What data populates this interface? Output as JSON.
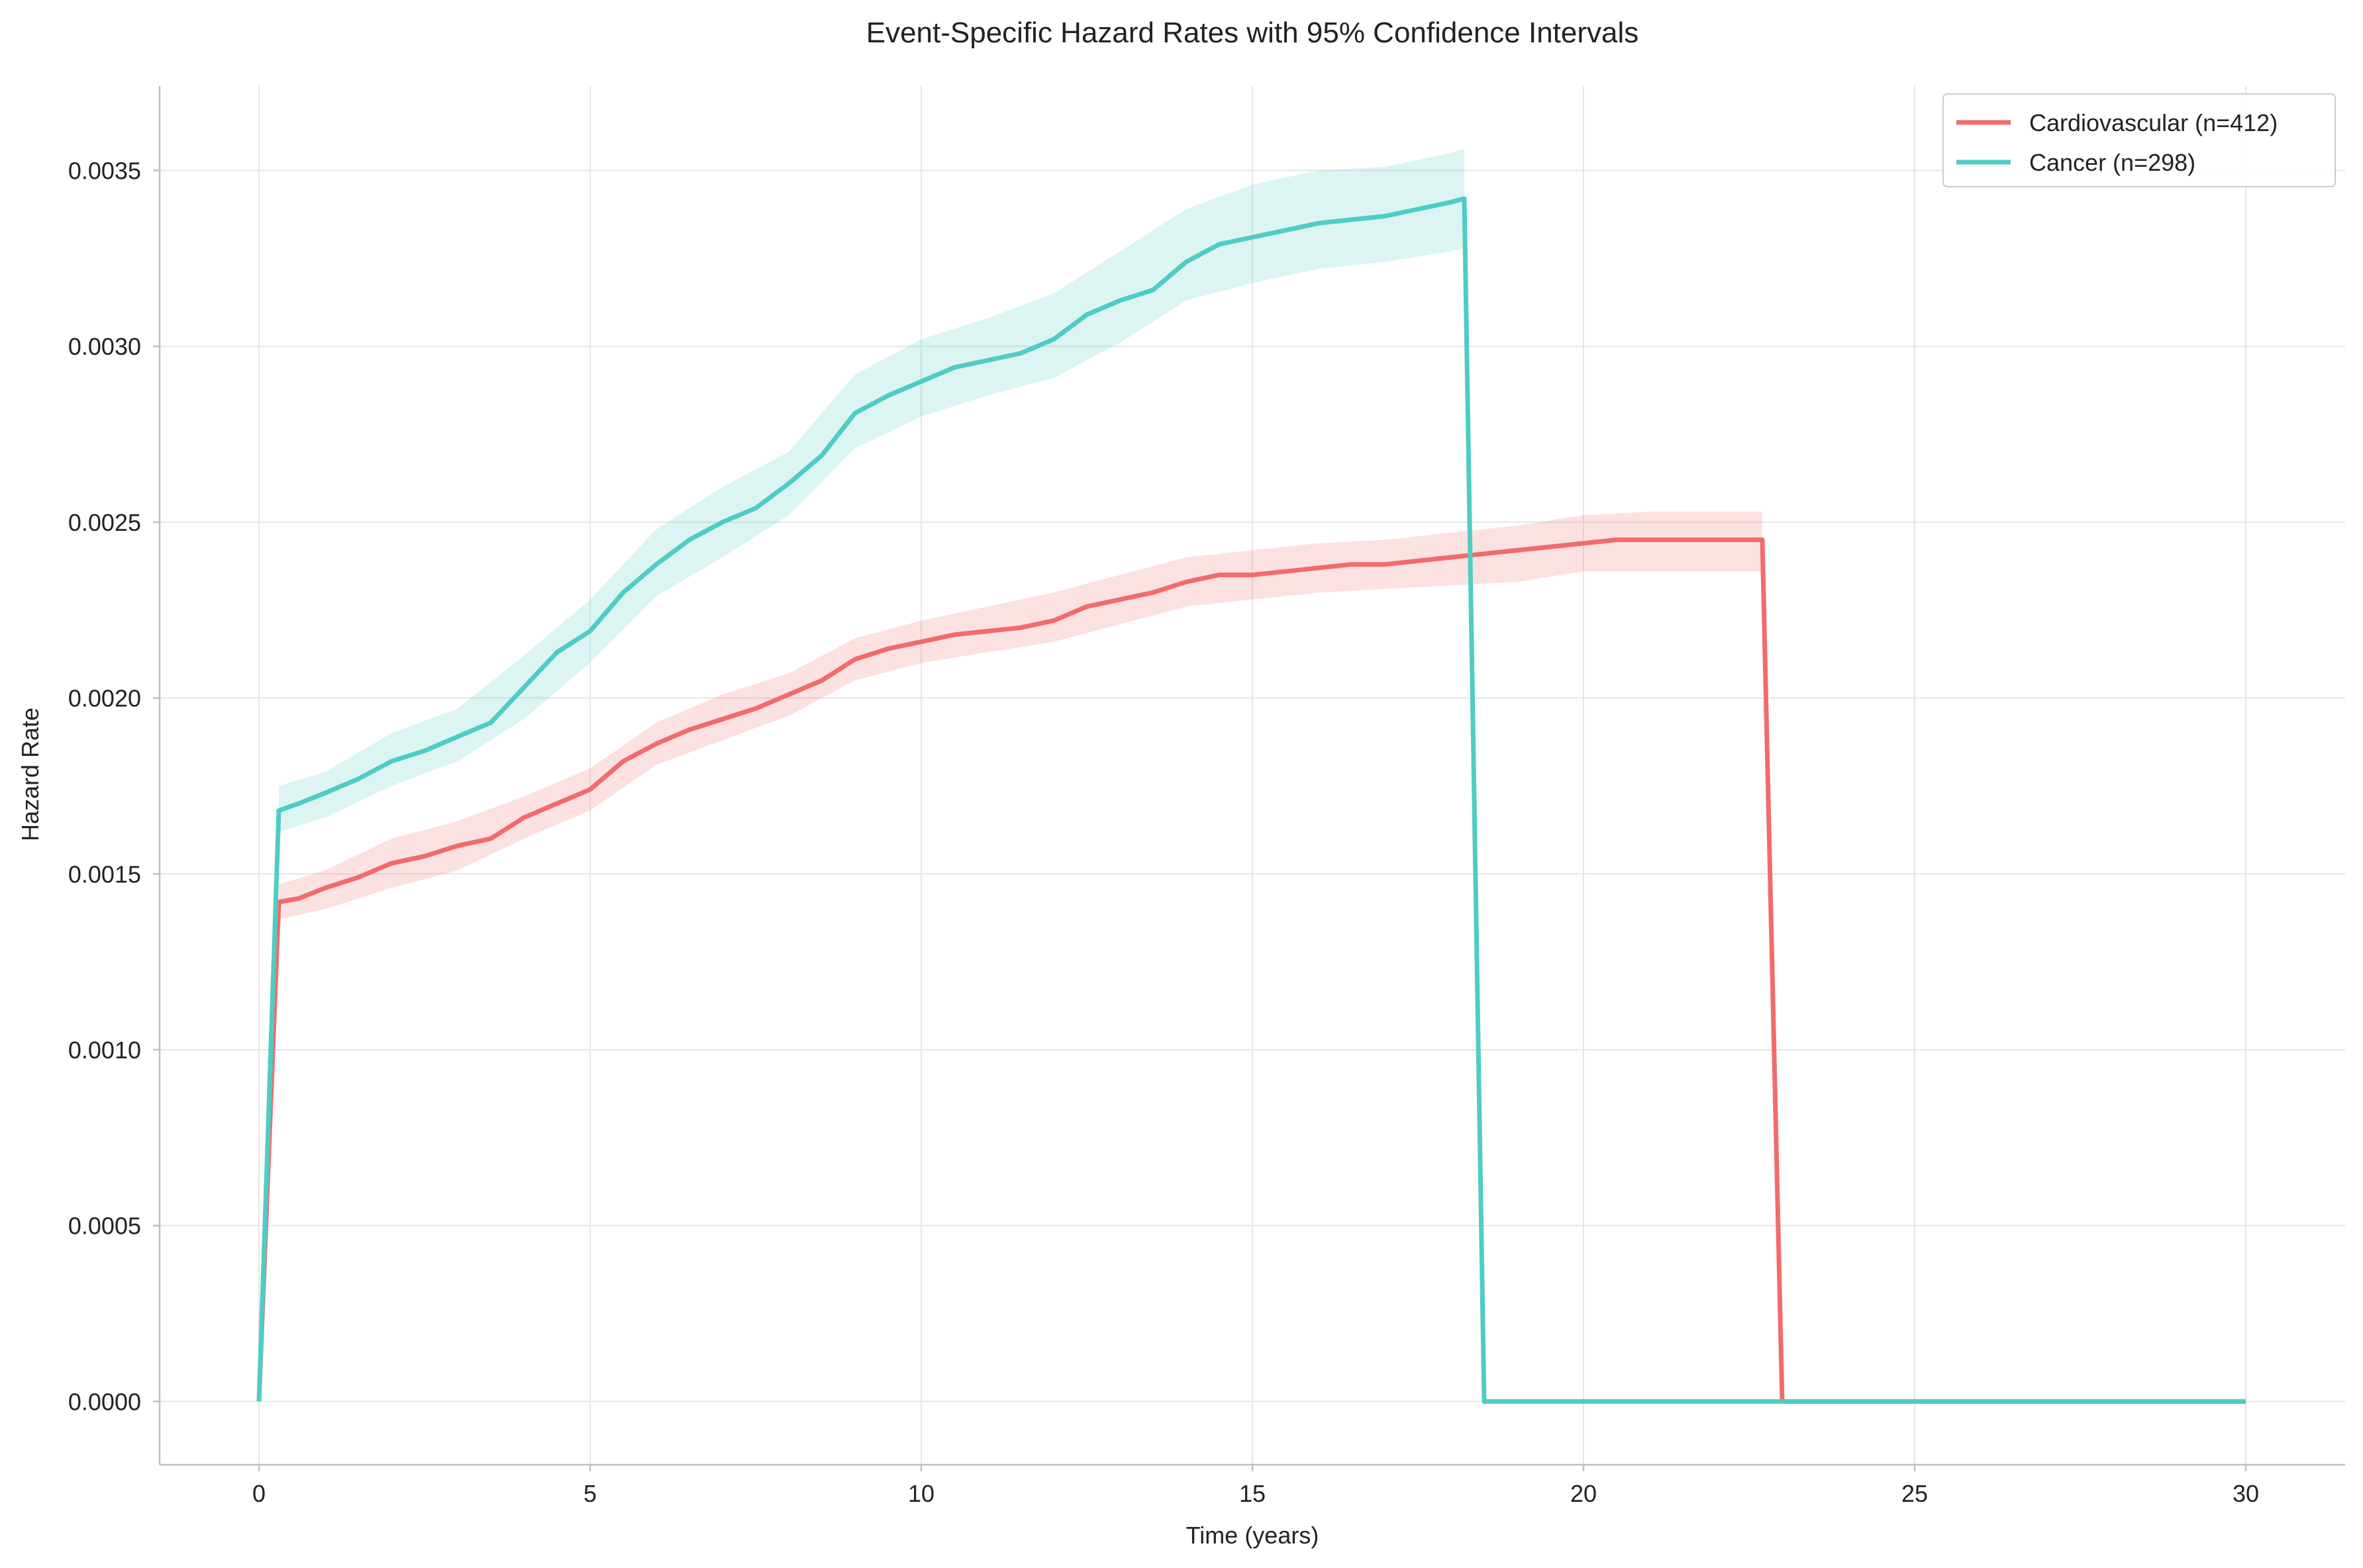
{
  "chart_data": {
    "type": "line",
    "title": "Event-Specific Hazard Rates with 95% Confidence Intervals",
    "xlabel": "Time (years)",
    "ylabel": "Hazard Rate",
    "xlim": [
      -1.5,
      31.5
    ],
    "ylim": [
      -0.00018,
      0.00374
    ],
    "xticks": [
      0,
      5,
      10,
      15,
      20,
      25,
      30
    ],
    "xtick_labels": [
      "0",
      "5",
      "10",
      "15",
      "20",
      "25",
      "30"
    ],
    "yticks": [
      0,
      0.0005,
      0.001,
      0.0015,
      0.002,
      0.0025,
      0.003,
      0.0035
    ],
    "ytick_labels": [
      "0.0000",
      "0.0005",
      "0.0010",
      "0.0015",
      "0.0020",
      "0.0025",
      "0.0030",
      "0.0035"
    ],
    "grid": true,
    "legend_position": "top-right",
    "series": [
      {
        "name": "Cardiovascular (n=412)",
        "color": "#F26B6B",
        "x": [
          0,
          0.3,
          0.6,
          1.0,
          1.5,
          2.0,
          2.5,
          3.0,
          3.5,
          4.0,
          4.5,
          5.0,
          5.5,
          6.0,
          6.5,
          7.0,
          7.5,
          8.0,
          8.5,
          9.0,
          9.5,
          10.0,
          10.5,
          11.0,
          11.5,
          12.0,
          12.5,
          13.0,
          13.5,
          14.0,
          14.5,
          15.0,
          15.5,
          16.0,
          16.5,
          17.0,
          17.5,
          18.0,
          18.5,
          19.0,
          19.5,
          20.0,
          20.5,
          21.0,
          21.5,
          22.0,
          22.7,
          23.0,
          23.5,
          24.0,
          25.0,
          26.0,
          27.0,
          28.0,
          29.0,
          30.0
        ],
        "y": [
          0,
          0.00142,
          0.00143,
          0.00146,
          0.00149,
          0.00153,
          0.00155,
          0.00158,
          0.0016,
          0.00166,
          0.0017,
          0.00174,
          0.00182,
          0.00187,
          0.00191,
          0.00194,
          0.00197,
          0.00201,
          0.00205,
          0.00211,
          0.00214,
          0.00216,
          0.00218,
          0.00219,
          0.0022,
          0.00222,
          0.00226,
          0.00228,
          0.0023,
          0.00233,
          0.00235,
          0.00235,
          0.00236,
          0.00237,
          0.00238,
          0.00238,
          0.00239,
          0.0024,
          0.00241,
          0.00242,
          0.00243,
          0.00244,
          0.00245,
          0.00245,
          0.00245,
          0.00245,
          0.00245,
          0,
          0,
          0,
          0,
          0,
          0,
          0,
          0,
          0
        ],
        "ci_x": [
          0.3,
          1.0,
          2.0,
          3.0,
          4.0,
          5.0,
          6.0,
          7.0,
          8.0,
          9.0,
          10.0,
          11.0,
          12.0,
          13.0,
          14.0,
          15.0,
          16.0,
          17.0,
          18.0,
          19.0,
          20.0,
          21.0,
          22.0,
          22.7
        ],
        "ci_lower": [
          0.00137,
          0.0014,
          0.00146,
          0.00151,
          0.0016,
          0.00168,
          0.00181,
          0.00188,
          0.00195,
          0.00205,
          0.0021,
          0.00213,
          0.00216,
          0.00221,
          0.00226,
          0.00228,
          0.0023,
          0.00231,
          0.00232,
          0.00233,
          0.00236,
          0.00236,
          0.00236,
          0.00236
        ],
        "ci_upper": [
          0.00147,
          0.00151,
          0.0016,
          0.00165,
          0.00172,
          0.0018,
          0.00193,
          0.00201,
          0.00207,
          0.00217,
          0.00222,
          0.00226,
          0.0023,
          0.00235,
          0.0024,
          0.00242,
          0.00244,
          0.00245,
          0.00247,
          0.00249,
          0.00252,
          0.00253,
          0.00253,
          0.00253
        ]
      },
      {
        "name": "Cancer (n=298)",
        "color": "#4ECDC4",
        "x": [
          0,
          0.3,
          0.6,
          1.0,
          1.5,
          2.0,
          2.5,
          3.0,
          3.5,
          4.0,
          4.5,
          5.0,
          5.5,
          6.0,
          6.5,
          7.0,
          7.5,
          8.0,
          8.5,
          9.0,
          9.5,
          10.0,
          10.5,
          11.0,
          11.5,
          12.0,
          12.5,
          13.0,
          13.5,
          14.0,
          14.5,
          15.0,
          15.5,
          16.0,
          16.5,
          17.0,
          17.5,
          18.0,
          18.2,
          18.5,
          19.0,
          20.0,
          21.0,
          22.0,
          23.0,
          24.0,
          25.0,
          26.0,
          27.0,
          28.0,
          29.0,
          30.0
        ],
        "y": [
          0,
          0.00168,
          0.0017,
          0.00173,
          0.00177,
          0.00182,
          0.00185,
          0.00189,
          0.00193,
          0.00203,
          0.00213,
          0.00219,
          0.0023,
          0.00238,
          0.00245,
          0.0025,
          0.00254,
          0.00261,
          0.00269,
          0.00281,
          0.00286,
          0.0029,
          0.00294,
          0.00296,
          0.00298,
          0.00302,
          0.00309,
          0.00313,
          0.00316,
          0.00324,
          0.00329,
          0.00331,
          0.00333,
          0.00335,
          0.00336,
          0.00337,
          0.00339,
          0.00341,
          0.00342,
          0,
          0,
          0,
          0,
          0,
          0,
          0,
          0,
          0,
          0,
          0,
          0,
          0
        ],
        "ci_x": [
          0.3,
          1.0,
          2.0,
          3.0,
          4.0,
          5.0,
          6.0,
          7.0,
          8.0,
          9.0,
          10.0,
          11.0,
          12.0,
          13.0,
          14.0,
          15.0,
          16.0,
          17.0,
          18.0,
          18.2
        ],
        "ci_lower": [
          0.00162,
          0.00166,
          0.00175,
          0.00182,
          0.00194,
          0.0021,
          0.00229,
          0.0024,
          0.00252,
          0.00271,
          0.0028,
          0.00286,
          0.00291,
          0.00301,
          0.00313,
          0.00318,
          0.00322,
          0.00324,
          0.00327,
          0.00328
        ],
        "ci_upper": [
          0.00175,
          0.00179,
          0.0019,
          0.00197,
          0.00212,
          0.00228,
          0.00248,
          0.0026,
          0.0027,
          0.00292,
          0.00302,
          0.00308,
          0.00315,
          0.00327,
          0.00339,
          0.00346,
          0.0035,
          0.00351,
          0.00355,
          0.00356
        ]
      }
    ]
  }
}
